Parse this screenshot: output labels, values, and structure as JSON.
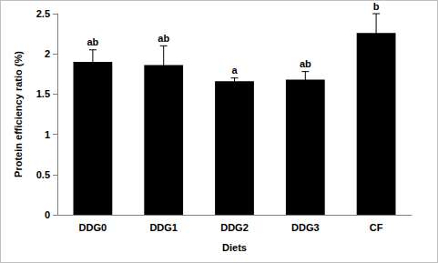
{
  "chart_data": {
    "type": "bar",
    "x_label": "Diets",
    "y_label": "Protein efficiency ratio (%)",
    "categories": [
      "DDG0",
      "DDG1",
      "DDG2",
      "DDG3",
      "CF"
    ],
    "values": [
      1.9,
      1.86,
      1.66,
      1.68,
      2.26
    ],
    "errors": [
      0.15,
      0.24,
      0.04,
      0.1,
      0.24
    ],
    "significance": [
      "ab",
      "ab",
      "a",
      "ab",
      "b"
    ],
    "color": "#000000",
    "ylim": [
      0,
      2.5
    ],
    "yticks": [
      0,
      0.5,
      1,
      1.5,
      2,
      2.5
    ],
    "grid": false
  }
}
